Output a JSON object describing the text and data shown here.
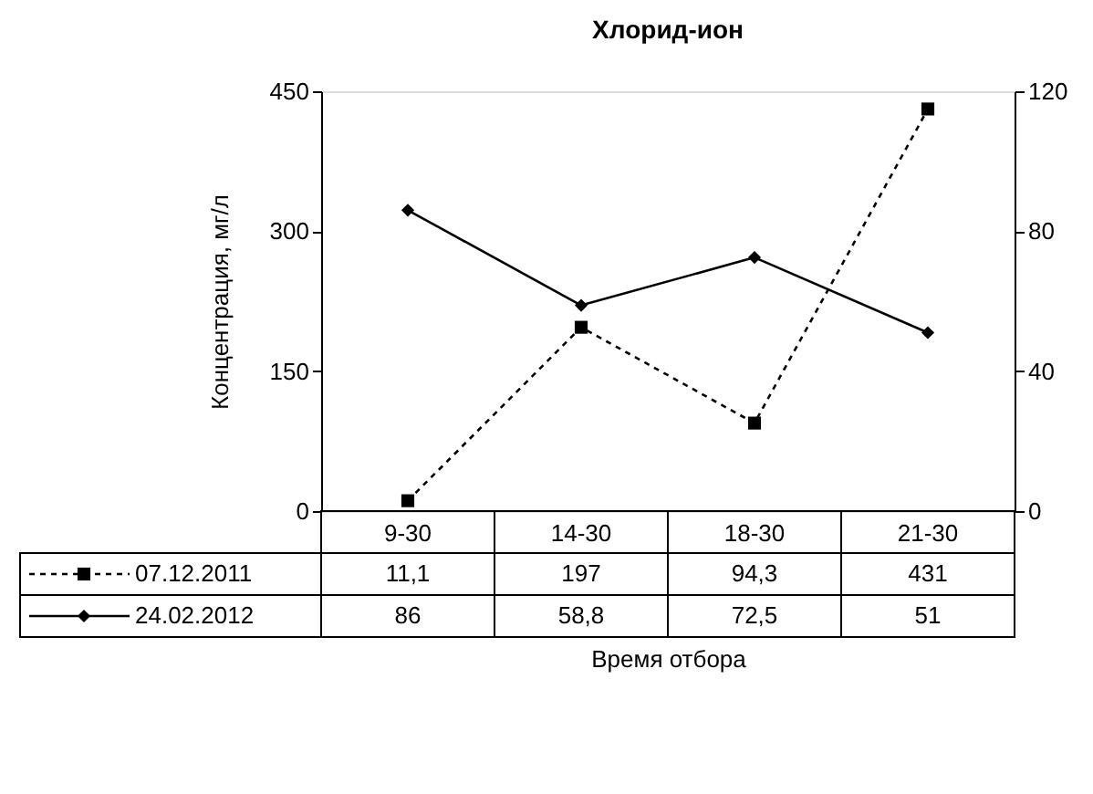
{
  "chart_data": {
    "type": "line",
    "title": "Хлорид-ион",
    "xlabel": "Время отбора",
    "ylabel": "Концентрация, мг/л",
    "categories": [
      "9-30",
      "14-30",
      "18-30",
      "21-30"
    ],
    "ylim": [
      0,
      450
    ],
    "yticks": [
      0,
      150,
      300,
      450
    ],
    "y2lim": [
      0,
      120
    ],
    "y2ticks": [
      0,
      40,
      80,
      120
    ],
    "legend": "bottom left",
    "series": [
      {
        "name": "07.12.2011",
        "color": "#000000",
        "values": [
          11.1,
          197,
          94.3,
          431
        ],
        "value_labels": [
          "11,1",
          "197",
          "94,3",
          "431"
        ],
        "marker": "square",
        "line_style": "dashed"
      },
      {
        "name": "24.02.2012",
        "color": "#000000",
        "axis": "y2",
        "values": [
          86,
          58.8,
          72.5,
          51
        ],
        "value_labels": [
          "86",
          "58,8",
          "72,5",
          "51"
        ],
        "marker": "diamond",
        "line_style": "solid"
      }
    ]
  }
}
